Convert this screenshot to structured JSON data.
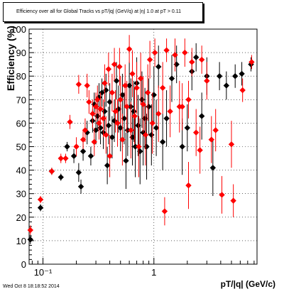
{
  "chart_data": {
    "type": "scatter",
    "title": "Efficiency over all for Global Tracks vs pT/|q| (GeV/q) at |η| 1.0 at pT > 0.11",
    "xlabel": "pT/|q| (GeV/c)",
    "ylabel": "Efficiency (%)",
    "xscale": "log",
    "xlim": [
      0.075,
      8.5
    ],
    "ylim": [
      0,
      100
    ],
    "x_tick_labels": [
      "10⁻¹",
      "1"
    ],
    "y_tick_labels": [
      "0",
      "10",
      "20",
      "30",
      "40",
      "50",
      "60",
      "70",
      "80",
      "90",
      "100"
    ],
    "grid": true,
    "footer": "Wed Oct  8 18:18:52 2014",
    "series": [
      {
        "color": "#000000",
        "marker": "diamond",
        "points": [
          [
            0.077,
            10.5,
            2
          ],
          [
            0.095,
            24,
            1.5
          ],
          [
            0.12,
            39.5,
            1.5
          ],
          [
            0.145,
            37,
            1.5
          ],
          [
            0.165,
            50,
            2
          ],
          [
            0.19,
            46,
            3
          ],
          [
            0.21,
            39,
            4
          ],
          [
            0.22,
            33,
            3
          ],
          [
            0.23,
            48,
            4
          ],
          [
            0.25,
            56,
            5
          ],
          [
            0.27,
            46,
            4
          ],
          [
            0.28,
            61,
            5
          ],
          [
            0.29,
            68,
            5
          ],
          [
            0.3,
            57,
            6
          ],
          [
            0.31,
            63,
            6
          ],
          [
            0.32,
            71,
            6
          ],
          [
            0.33,
            58,
            7
          ],
          [
            0.34,
            73,
            6
          ],
          [
            0.35,
            56,
            7
          ],
          [
            0.36,
            65,
            8
          ],
          [
            0.37,
            74,
            7
          ],
          [
            0.38,
            42,
            8
          ],
          [
            0.39,
            59,
            8
          ],
          [
            0.4,
            69,
            8
          ],
          [
            0.42,
            54,
            9
          ],
          [
            0.44,
            61,
            9
          ],
          [
            0.46,
            78,
            8
          ],
          [
            0.48,
            66,
            10
          ],
          [
            0.5,
            58,
            10
          ],
          [
            0.52,
            72,
            9
          ],
          [
            0.54,
            62,
            11
          ],
          [
            0.56,
            44,
            12
          ],
          [
            0.58,
            57,
            11
          ],
          [
            0.6,
            76,
            10
          ],
          [
            0.62,
            67,
            12
          ],
          [
            0.64,
            54,
            12
          ],
          [
            0.66,
            65,
            13
          ],
          [
            0.68,
            50,
            13
          ],
          [
            0.7,
            77,
            11
          ],
          [
            0.72,
            59,
            13
          ],
          [
            0.75,
            48,
            14
          ],
          [
            0.78,
            70,
            12
          ],
          [
            0.8,
            56,
            14
          ],
          [
            0.83,
            62,
            13
          ],
          [
            0.86,
            50,
            14
          ],
          [
            0.9,
            67,
            12
          ],
          [
            0.95,
            55,
            13
          ],
          [
            1.0,
            72,
            12
          ],
          [
            1.05,
            58,
            12
          ],
          [
            1.1,
            84,
            9
          ],
          [
            1.2,
            52,
            12
          ],
          [
            1.3,
            62,
            12
          ],
          [
            1.45,
            79,
            10
          ],
          [
            1.6,
            85,
            8
          ],
          [
            1.8,
            50,
            12
          ],
          [
            2.0,
            58,
            10
          ],
          [
            2.2,
            82,
            8
          ],
          [
            2.4,
            88,
            6
          ],
          [
            2.7,
            63,
            10
          ],
          [
            3.0,
            80,
            8
          ],
          [
            3.4,
            41,
            12
          ],
          [
            3.9,
            80,
            6
          ],
          [
            4.5,
            76,
            6
          ],
          [
            5.4,
            80,
            5
          ],
          [
            6.2,
            81,
            5
          ],
          [
            7.5,
            85,
            3
          ]
        ]
      },
      {
        "color": "#ff0000",
        "marker": "diamond",
        "points": [
          [
            0.077,
            14.5,
            2
          ],
          [
            0.095,
            27.5,
            1.5
          ],
          [
            0.12,
            39.5,
            1.5
          ],
          [
            0.145,
            45,
            2
          ],
          [
            0.16,
            45,
            2
          ],
          [
            0.175,
            60.5,
            3
          ],
          [
            0.2,
            50,
            4
          ],
          [
            0.21,
            76.5,
            4
          ],
          [
            0.23,
            53,
            4
          ],
          [
            0.24,
            57,
            5
          ],
          [
            0.25,
            76,
            5
          ],
          [
            0.26,
            69,
            5
          ],
          [
            0.28,
            64,
            6
          ],
          [
            0.29,
            52,
            6
          ],
          [
            0.3,
            67,
            6
          ],
          [
            0.31,
            70,
            6
          ],
          [
            0.32,
            60,
            7
          ],
          [
            0.33,
            66,
            7
          ],
          [
            0.35,
            62,
            8
          ],
          [
            0.36,
            77,
            8
          ],
          [
            0.37,
            55,
            8
          ],
          [
            0.39,
            83,
            7
          ],
          [
            0.4,
            46,
            9
          ],
          [
            0.42,
            73,
            8
          ],
          [
            0.44,
            85,
            7
          ],
          [
            0.45,
            65,
            9
          ],
          [
            0.47,
            60,
            10
          ],
          [
            0.49,
            84,
            8
          ],
          [
            0.5,
            70,
            10
          ],
          [
            0.52,
            53,
            11
          ],
          [
            0.55,
            76,
            9
          ],
          [
            0.57,
            67,
            11
          ],
          [
            0.6,
            91.5,
            6
          ],
          [
            0.62,
            57,
            12
          ],
          [
            0.64,
            81,
            10
          ],
          [
            0.67,
            63,
            12
          ],
          [
            0.7,
            75,
            11
          ],
          [
            0.73,
            50,
            13
          ],
          [
            0.76,
            79,
            11
          ],
          [
            0.8,
            68,
            12
          ],
          [
            0.84,
            55,
            13
          ],
          [
            0.88,
            73,
            12
          ],
          [
            0.92,
            87,
            8
          ],
          [
            0.97,
            60,
            13
          ],
          [
            1.02,
            90,
            6
          ],
          [
            1.1,
            64,
            12
          ],
          [
            1.2,
            75,
            11
          ],
          [
            1.3,
            91,
            5
          ],
          [
            1.4,
            65,
            11
          ],
          [
            1.55,
            89,
            7
          ],
          [
            1.7,
            67,
            11
          ],
          [
            1.8,
            67,
            10
          ],
          [
            1.9,
            90,
            6
          ],
          [
            2.05,
            33.5,
            10
          ],
          [
            2.2,
            86,
            6
          ],
          [
            2.4,
            56,
            10
          ],
          [
            2.6,
            48.5,
            10
          ],
          [
            2.7,
            87,
            6
          ],
          [
            3.0,
            78,
            8
          ],
          [
            3.3,
            53,
            10
          ],
          [
            3.6,
            57,
            9
          ],
          [
            4.1,
            29.5,
            8
          ],
          [
            5.0,
            51,
            10
          ],
          [
            5.2,
            27,
            7
          ],
          [
            6.3,
            74,
            5
          ],
          [
            7.6,
            86,
            3
          ],
          [
            1.25,
            22.5,
            6
          ],
          [
            2.05,
            70,
            8
          ]
        ]
      }
    ]
  }
}
